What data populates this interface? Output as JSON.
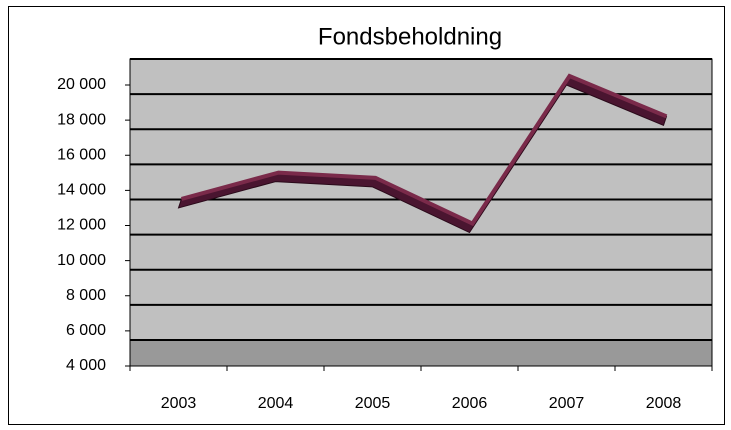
{
  "chart_data": {
    "type": "line",
    "title": "Fondsbeholdning",
    "categories": [
      "2003",
      "2004",
      "2005",
      "2006",
      "2007",
      "2008"
    ],
    "values": [
      13000,
      14500,
      14200,
      11600,
      20000,
      17700
    ],
    "color": "#7a2a4a",
    "ylim": [
      4000,
      20000
    ],
    "yticks": [
      {
        "value": 4000,
        "label": "4 000"
      },
      {
        "value": 6000,
        "label": "6 000"
      },
      {
        "value": 8000,
        "label": "8 000"
      },
      {
        "value": 10000,
        "label": "10 000"
      },
      {
        "value": 12000,
        "label": "12 000"
      },
      {
        "value": 14000,
        "label": "14 000"
      },
      {
        "value": 16000,
        "label": "16 000"
      },
      {
        "value": 18000,
        "label": "18 000"
      },
      {
        "value": 20000,
        "label": "20 000"
      }
    ],
    "grid": true
  }
}
